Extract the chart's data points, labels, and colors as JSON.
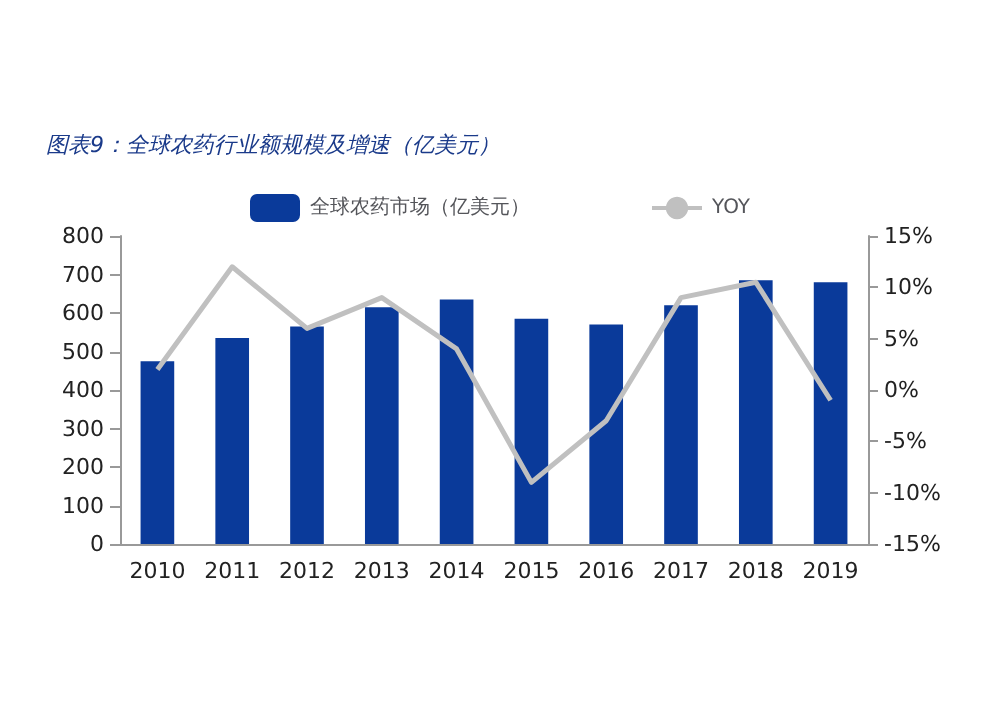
{
  "chart_data": {
    "type": "bar",
    "title": "图表9：全球农药行业额规模及增速（亿美元）",
    "categories": [
      "2010",
      "2011",
      "2012",
      "2013",
      "2014",
      "2015",
      "2016",
      "2017",
      "2018",
      "2019"
    ],
    "series": [
      {
        "name": "全球农药市场（亿美元）",
        "color": "#0a3a9a",
        "values": [
          475,
          535,
          565,
          615,
          635,
          585,
          570,
          620,
          685,
          680
        ]
      },
      {
        "name": "YOY",
        "type": "line",
        "axis": "y2",
        "color": "#c0c0c0",
        "values": [
          2,
          12,
          6,
          9,
          4,
          -9,
          -3,
          9,
          10.5,
          -1
        ]
      }
    ],
    "ylim": [
      0,
      800
    ],
    "yticks": [
      0,
      100,
      200,
      300,
      400,
      500,
      600,
      700,
      800
    ],
    "y2lim": [
      -15,
      15
    ],
    "y2ticks": [
      {
        "value": -15,
        "label": "-15%"
      },
      {
        "value": -10,
        "label": "-10%"
      },
      {
        "value": -5,
        "label": "-5%"
      },
      {
        "value": 0,
        "label": "0%"
      },
      {
        "value": 5,
        "label": "5%"
      },
      {
        "value": 10,
        "label": "10%"
      },
      {
        "value": 15,
        "label": "15%"
      }
    ],
    "grid": false,
    "legend": "top",
    "marker": "none"
  }
}
